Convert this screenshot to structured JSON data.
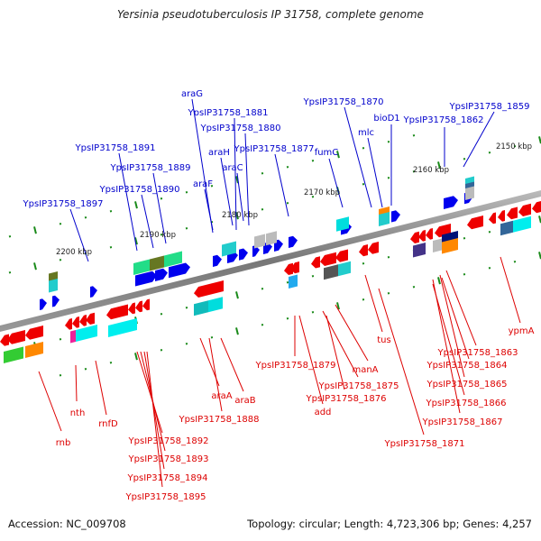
{
  "title": "Yersinia pseudotuberculosis IP 31758, complete genome",
  "footer": {
    "accession": "Accession: NC_009708",
    "summary": "Topology: circular; Length: 4,723,306 bp; Genes: 4,257"
  },
  "colors": {
    "forward_label": "#0000cc",
    "reverse_label": "#dd0000",
    "forward_gene": "#0000ee",
    "reverse_gene": "#ee0000",
    "tick": "#1a8a1a",
    "backbone": "#888888"
  },
  "ruler": [
    "2150 kbp",
    "2160 kbp",
    "2170 kbp",
    "2180 kbp",
    "2190 kbp",
    "2200 kbp"
  ],
  "forward_labels": [
    "araG",
    "YpsIP31758_1881",
    "YpsIP31758_1880",
    "araH",
    "YpsIP31758_1877",
    "araC",
    "araF",
    "YpsIP31758_1891",
    "YpsIP31758_1889",
    "YpsIP31758_1890",
    "YpsIP31758_1897",
    "YpsIP31758_1870",
    "mlc",
    "bioD1",
    "YpsIP31758_1862",
    "YpsIP31758_1859",
    "fumC"
  ],
  "reverse_labels": [
    "rnb",
    "nth",
    "rnfD",
    "araA",
    "araB",
    "YpsIP31758_1888",
    "YpsIP31758_1892",
    "YpsIP31758_1893",
    "YpsIP31758_1894",
    "YpsIP31758_1895",
    "YpsIP31758_1879",
    "YpsIP31758_1875",
    "YpsIP31758_1876",
    "add",
    "manA",
    "tus",
    "YpsIP31758_1871",
    "YpsIP31758_1867",
    "YpsIP31758_1866",
    "YpsIP31758_1865",
    "YpsIP31758_1864",
    "YpsIP31758_1863",
    "ypmA"
  ]
}
